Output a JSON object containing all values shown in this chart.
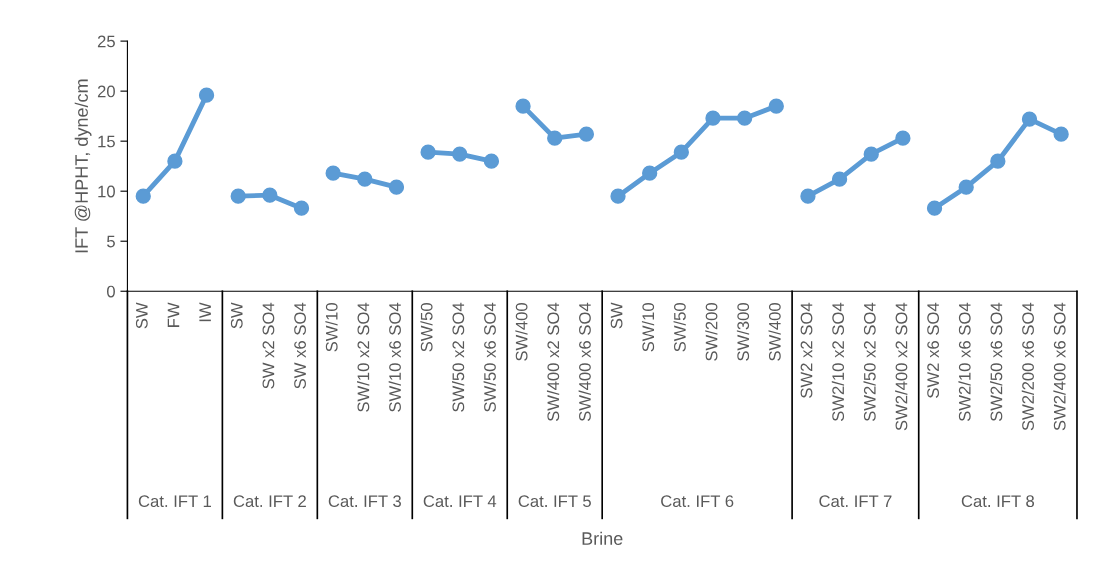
{
  "chart_data": {
    "type": "line",
    "ylabel": "IFT @HPHT, dyne/cm",
    "categories": [
      "SW",
      "FW",
      "IW",
      "SW",
      "SW x2 SO4",
      "SW x6 SO4",
      "SW/10",
      "SW/10 x2 SO4",
      "SW/10 x6 SO4",
      "SW/50",
      "SW/50 x2 SO4",
      "SW/50 x6 SO4",
      "SW/400",
      "SW/400 x2 SO4",
      "SW/400 x6 SO4",
      "SW",
      "SW/10",
      "SW/50",
      "SW/200",
      "SW/300",
      "SW/400",
      "SW2 x2 SO4",
      "SW2/10 x2 SO4",
      "SW2/50 x2 SO4",
      "SW2/400 x2 SO4",
      "SW2 x6 SO4",
      "SW2/10 x6 SO4",
      "SW2/50 x6 SO4",
      "SW2/200 x6 SO4",
      "SW2/400 x6 SO4"
    ],
    "series": [
      {
        "color": "#5b9bd5",
        "values": [
          9.5,
          13.0,
          19.6,
          null,
          null,
          null,
          null,
          null,
          null,
          null,
          null,
          null,
          null,
          null,
          null,
          null,
          null,
          null,
          null,
          null,
          null,
          null,
          null,
          null,
          null,
          null,
          null,
          null,
          null,
          null
        ]
      },
      {
        "color": "#5b9bd5",
        "values": [
          null,
          null,
          null,
          9.5,
          9.6,
          8.3,
          null,
          null,
          null,
          null,
          null,
          null,
          null,
          null,
          null,
          null,
          null,
          null,
          null,
          null,
          null,
          null,
          null,
          null,
          null,
          null,
          null,
          null,
          null,
          null
        ]
      },
      {
        "color": "#5b9bd5",
        "values": [
          null,
          null,
          null,
          null,
          null,
          null,
          11.8,
          11.2,
          10.4,
          null,
          null,
          null,
          null,
          null,
          null,
          null,
          null,
          null,
          null,
          null,
          null,
          null,
          null,
          null,
          null,
          null,
          null,
          null,
          null,
          null
        ]
      },
      {
        "color": "#5b9bd5",
        "values": [
          null,
          null,
          null,
          null,
          null,
          null,
          null,
          null,
          null,
          13.9,
          13.7,
          13.0,
          null,
          null,
          null,
          null,
          null,
          null,
          null,
          null,
          null,
          null,
          null,
          null,
          null,
          null,
          null,
          null,
          null,
          null
        ]
      },
      {
        "color": "#5b9bd5",
        "values": [
          null,
          null,
          null,
          null,
          null,
          null,
          null,
          null,
          null,
          null,
          null,
          null,
          18.5,
          15.3,
          15.7,
          null,
          null,
          null,
          null,
          null,
          null,
          null,
          null,
          null,
          null,
          null,
          null,
          null,
          null,
          null
        ]
      },
      {
        "color": "#5b9bd5",
        "values": [
          null,
          null,
          null,
          null,
          null,
          null,
          null,
          null,
          null,
          null,
          null,
          null,
          null,
          null,
          null,
          9.5,
          11.8,
          13.9,
          17.3,
          17.3,
          18.5,
          null,
          null,
          null,
          null,
          null,
          null,
          null,
          null,
          null
        ]
      },
      {
        "color": "#5b9bd5",
        "values": [
          null,
          null,
          null,
          null,
          null,
          null,
          null,
          null,
          null,
          null,
          null,
          null,
          null,
          null,
          null,
          null,
          null,
          null,
          null,
          null,
          null,
          9.5,
          11.2,
          13.7,
          15.3,
          null,
          null,
          null,
          null,
          null
        ]
      },
      {
        "color": "#5b9bd5",
        "values": [
          null,
          null,
          null,
          null,
          null,
          null,
          null,
          null,
          null,
          null,
          null,
          null,
          null,
          null,
          null,
          null,
          null,
          null,
          null,
          null,
          null,
          null,
          null,
          null,
          null,
          8.3,
          10.4,
          13.0,
          17.2,
          15.7
        ]
      }
    ],
    "annotations": [
      "Cat. IFT 1",
      "Cat. IFT 2",
      "Cat. IFT 3",
      "Cat. IFT 4",
      "Cat. IFT 5",
      "Cat. IFT 6",
      "Cat. IFT 7",
      "Cat. IFT 8",
      "Brine"
    ],
    "ylim": [
      0,
      25
    ],
    "yticks": [
      0,
      5,
      10,
      15,
      20,
      25
    ],
    "grid": false,
    "legend": false,
    "marker": "circle",
    "line_style": "solid"
  }
}
